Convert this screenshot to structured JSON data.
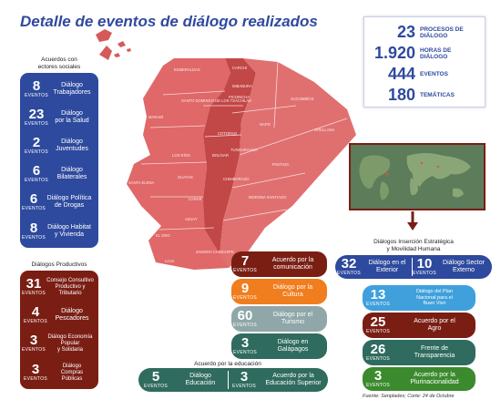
{
  "title": "Detalle de eventos de diálogo realizados",
  "stats": [
    {
      "num": "23",
      "label_1": "PROCESOS DE",
      "label_2": "DIÁLOGO"
    },
    {
      "num": "1.920",
      "label_1": "HORAS DE",
      "label_2": "DIÁLOGO"
    },
    {
      "num": "444",
      "label_1": "EVENTOS",
      "label_2": ""
    },
    {
      "num": "180",
      "label_1": "TEMÁTICAS",
      "label_2": ""
    }
  ],
  "social": {
    "title_1": "Acuerdos con",
    "title_2": "ectores sociales",
    "items": [
      {
        "num": "8",
        "ev": "EVENTOS",
        "l1": "Diálogo",
        "l2": "Trabajadores"
      },
      {
        "num": "23",
        "ev": "EVENTOS",
        "l1": "Diálogo",
        "l2": "por la Salud"
      },
      {
        "num": "2",
        "ev": "EVENTOS",
        "l1": "Diálogo",
        "l2": "Juventudes"
      },
      {
        "num": "6",
        "ev": "EVENTOS",
        "l1": "Diálogo",
        "l2": "Bilaterales"
      },
      {
        "num": "6",
        "ev": "EVENTOS",
        "l1": "Diálogo Política",
        "l2": "de Drogas"
      },
      {
        "num": "8",
        "ev": "EVENTOS",
        "l1": "Diálogo Habitat",
        "l2": "y Vivienda"
      }
    ]
  },
  "productivos": {
    "title": "Diálogos Productivos",
    "items": [
      {
        "num": "31",
        "ev": "EVENTOS",
        "l1": "Consejo Consultivo",
        "l2": "Productivo y",
        "l3": "Tributario"
      },
      {
        "num": "4",
        "ev": "EVENTOS",
        "l1": "Diálogo",
        "l2": "Pescadores",
        "l3": ""
      },
      {
        "num": "3",
        "ev": "EVENTOS",
        "l1": "Diálogo Economía",
        "l2": "Popular",
        "l3": "y Solidaria"
      },
      {
        "num": "3",
        "ev": "EVENTOS",
        "l1": "Diálogo",
        "l2": "Compras",
        "l3": "Públicas"
      }
    ]
  },
  "middle": [
    {
      "num": "7",
      "ev": "EVENTOS",
      "l1": "Acuerdo por la",
      "l2": "comunicación",
      "color": "#7a1e14"
    },
    {
      "num": "9",
      "ev": "EVENTOS",
      "l1": "Diálogo por la",
      "l2": "Cultura",
      "color": "#f07d1e"
    },
    {
      "num": "60",
      "ev": "EVENTOS",
      "l1": "Diálogo por el",
      "l2": "Turismo",
      "color": "#8fa7a8"
    },
    {
      "num": "3",
      "ev": "EVENTOS",
      "l1": "Diálogo en",
      "l2": "Galápagos",
      "color": "#2f6b5e"
    }
  ],
  "educacion": {
    "title": "Acuerdo por la educación",
    "items": [
      {
        "num": "5",
        "ev": "EVENTOS",
        "l1": "Diálogo",
        "l2": "Educación"
      },
      {
        "num": "3",
        "ev": "EVENTOS",
        "l1": "Acuerdo por la",
        "l2": "Educación Superior"
      }
    ]
  },
  "insercion": {
    "title_1": "Diálogos Inserción Estratégica",
    "title_2": "y Movilidad Humana",
    "items": [
      {
        "num": "32",
        "ev": "EVENTOS",
        "l1": "Diálogo en el",
        "l2": "Exterior"
      },
      {
        "num": "10",
        "ev": "EVENTOS",
        "l1": "Diálogo Sector",
        "l2": "Externo"
      }
    ]
  },
  "right": [
    {
      "num": "13",
      "ev": "EVENTOS",
      "l1": "Diálogo del Plan",
      "l2": "Nacional para el",
      "l3": "Buen Vivir",
      "color": "#3fa0dc"
    },
    {
      "num": "25",
      "ev": "EVENTOS",
      "l1": "Acuerdo por el",
      "l2": "Agro",
      "l3": "",
      "color": "#7a1e14"
    },
    {
      "num": "26",
      "ev": "EVENTOS",
      "l1": "Frente de",
      "l2": "Transparencia",
      "l3": "",
      "color": "#2f6b5e"
    },
    {
      "num": "3",
      "ev": "EVENTOS",
      "l1": "Acuerdo por la",
      "l2": "Plurinacionalidad",
      "l3": "",
      "color": "#3b8a2e"
    }
  ],
  "map_labels": [
    "ESMERALDAS",
    "CARCHI",
    "IMBABURA",
    "SANTO DOMINGO DE LOS TSÁCHILAS",
    "PICHINCHA",
    "SUCUMBÍOS",
    "NAPO",
    "ORELLANA",
    "MANABÍ",
    "COTOPAXI",
    "LOS RÍOS",
    "TUNGURAHUA",
    "PASTAZA",
    "BOLÍVAR",
    "GUAYAS",
    "SANTA ELENA",
    "CHIMBORAZO",
    "MORONA SANTIAGO",
    "CAÑAR",
    "AZUAY",
    "EL ORO",
    "ZAMORA CHINCHIPE",
    "LOJA"
  ],
  "source": "Fuente: Senplades; Corte: 24 de Octubre"
}
